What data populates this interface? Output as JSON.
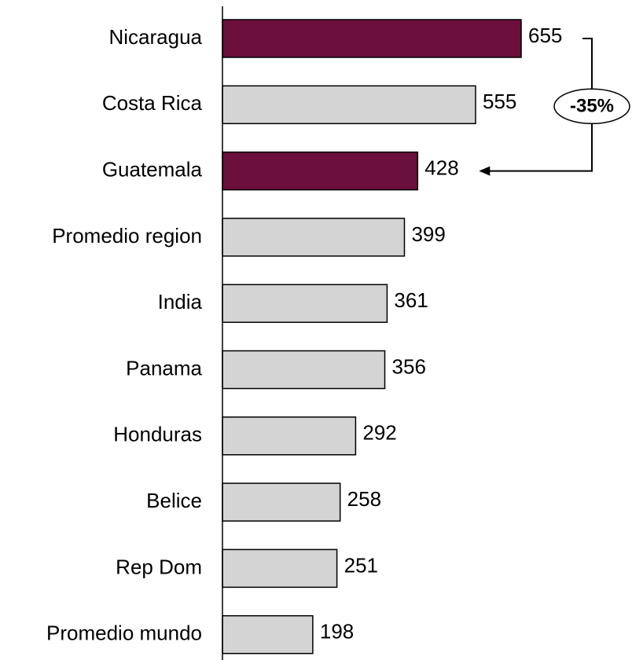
{
  "chart_data": {
    "type": "bar",
    "orientation": "horizontal",
    "categories": [
      "Nicaragua",
      "Costa Rica",
      "Guatemala",
      "Promedio region",
      "India",
      "Panama",
      "Honduras",
      "Belice",
      "Rep Dom",
      "Promedio mundo"
    ],
    "values": [
      655,
      555,
      428,
      399,
      361,
      356,
      292,
      258,
      251,
      198
    ],
    "highlighted": [
      "Nicaragua",
      "Guatemala"
    ],
    "colors": {
      "highlight": "#6b0f3d",
      "default": "#d4d4d4",
      "border": "#000000"
    },
    "xlim": [
      0,
      655
    ],
    "annotation": {
      "from": "Nicaragua",
      "to": "Guatemala",
      "text": "-35%"
    },
    "title": "",
    "xlabel": "",
    "ylabel": "",
    "grid": false,
    "legend": false
  }
}
